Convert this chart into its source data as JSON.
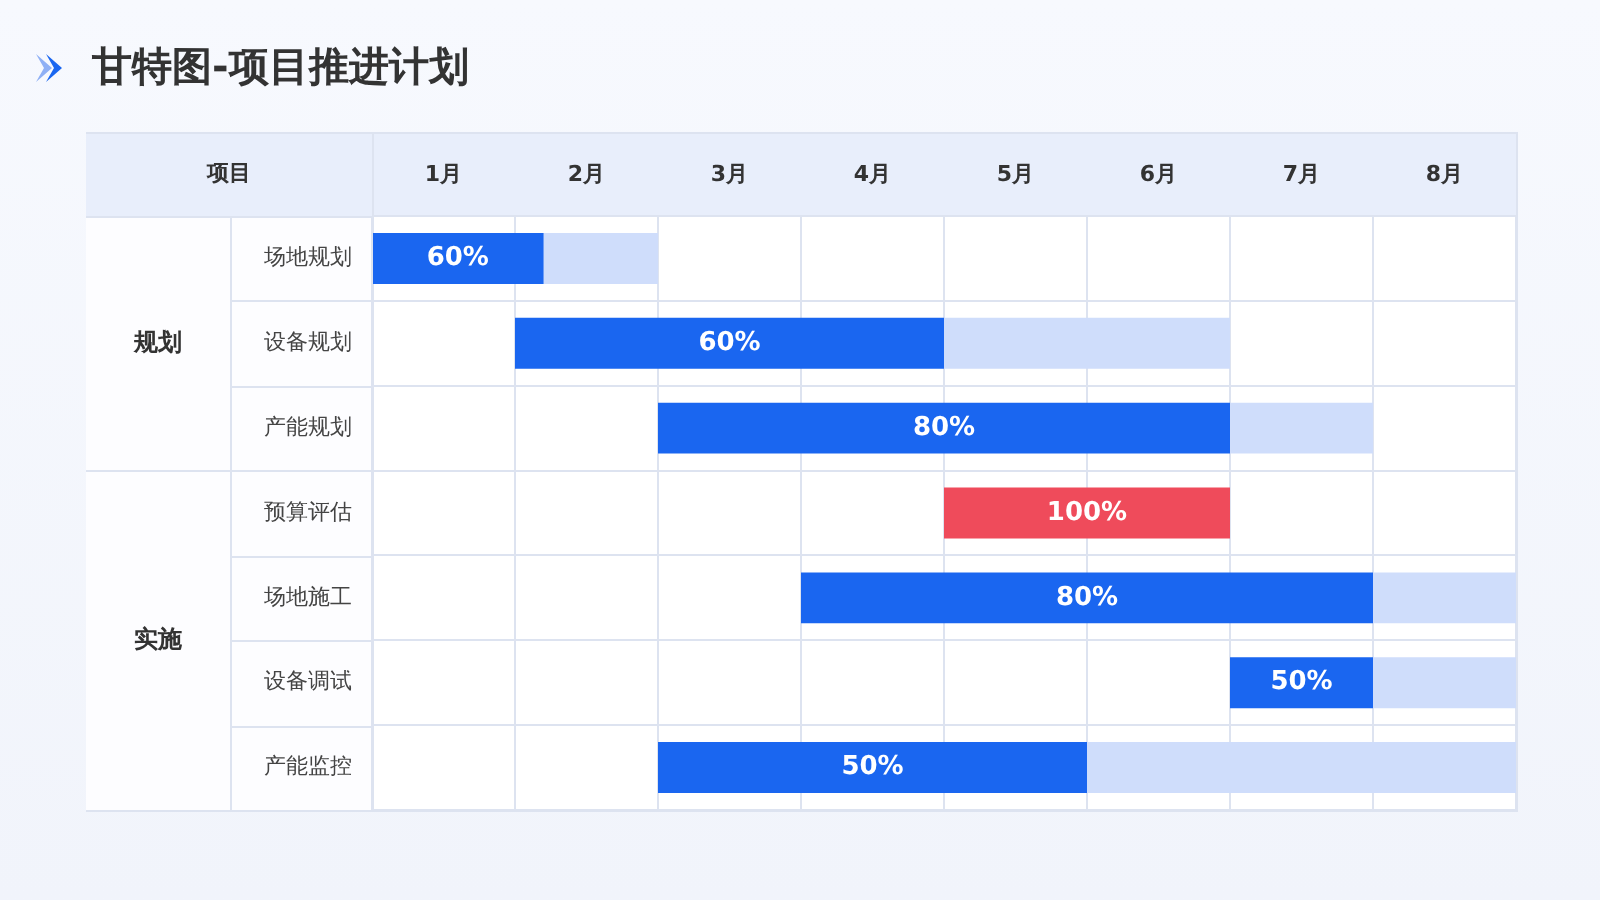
{
  "chart_data": {
    "type": "bar",
    "orientation": "horizontal",
    "title": "甘特图-项目推进计划",
    "ylabel": "项目",
    "categories": [
      "场地规划",
      "设备规划",
      "产能规划",
      "预算评估",
      "场地施工",
      "设备调试",
      "产能监控"
    ],
    "series": [
      {
        "colors": [
          "#1a66f0",
          "#1a66f0",
          "#1a66f0",
          "#ef4b5b",
          "#1a66f0",
          "#1a66f0",
          "#1a66f0"
        ],
        "base": [
          0,
          1,
          2,
          4,
          3,
          6,
          2
        ],
        "values": [
          1.2,
          3,
          4,
          2,
          4,
          1,
          3
        ]
      },
      {
        "color": "#cfddfb",
        "base": [
          1.2,
          4,
          6,
          null,
          7,
          7,
          5
        ],
        "values": [
          0.8,
          2,
          1,
          null,
          1,
          1,
          3
        ]
      }
    ],
    "xlim": [
      0,
      8
    ],
    "xticks": [
      {
        "value": 0,
        "label": null
      },
      {
        "value": 0.5,
        "label": "1月"
      },
      {
        "value": 1,
        "label": null
      },
      {
        "value": 1.5,
        "label": "2月"
      },
      {
        "value": 2,
        "label": null
      },
      {
        "value": 2.5,
        "label": "3月"
      },
      {
        "value": 3,
        "label": null
      },
      {
        "value": 3.5,
        "label": "4月"
      },
      {
        "value": 4,
        "label": null
      },
      {
        "value": 4.5,
        "label": "5月"
      },
      {
        "value": 5,
        "label": null
      },
      {
        "value": 5.5,
        "label": "6月"
      },
      {
        "value": 6,
        "label": null
      },
      {
        "value": 6.5,
        "label": "7月"
      },
      {
        "value": 7,
        "label": null
      },
      {
        "value": 7.5,
        "label": "8月"
      },
      {
        "value": 8,
        "label": null
      }
    ],
    "annotations": [
      "规划",
      "实施",
      {
        "text": "60%",
        "x": 0.6,
        "y": "场地规划"
      },
      {
        "text": "60%",
        "x": 2.5,
        "y": "设备规划"
      },
      {
        "text": "80%",
        "x": 4,
        "y": "产能规划"
      },
      {
        "text": "100%",
        "x": 5,
        "y": "预算评估"
      },
      {
        "text": "80%",
        "x": 5,
        "y": "场地施工"
      },
      {
        "text": "50%",
        "x": 6.5,
        "y": "设备调试"
      },
      {
        "text": "50%",
        "x": 3.5,
        "y": "产能监控"
      }
    ],
    "grid": true,
    "legend": false
  }
}
